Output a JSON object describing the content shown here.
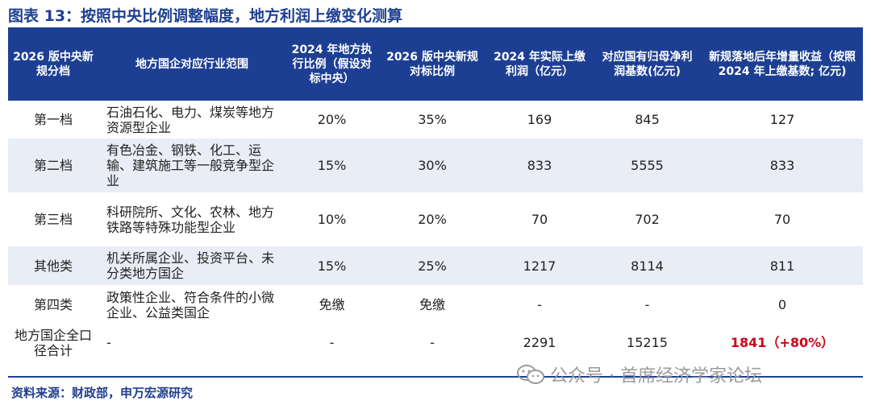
{
  "title": "图表 13：按照中央比例调整幅度，地方利润上缴变化测算",
  "table": {
    "headers": [
      "2026 版中央新规分档",
      "地方国企对应行业范围",
      "2024 年地方执行比例（假设对标中央）",
      "2026 版中央新规对标比例",
      "2024 年实际上缴利润（亿元）",
      "对应国有归母净利润基数(亿元)",
      "新规落地后年增量收益（按照 2024 年上缴基数; 亿元)"
    ],
    "rows": [
      {
        "tier": "第一档",
        "scope": "石油石化、电力、煤炭等地方资源型企业",
        "ratio2024": "20%",
        "ratio2026": "35%",
        "paid2024": "169",
        "base": "845",
        "increment": "127"
      },
      {
        "tier": "第二档",
        "scope": "有色冶金、钢铁、化工、运输、建筑施工等一般竞争型企业",
        "ratio2024": "15%",
        "ratio2026": "30%",
        "paid2024": "833",
        "base": "5555",
        "increment": "833"
      },
      {
        "tier": "第三档",
        "scope": "科研院所、文化、农林、地方铁路等特殊功能型企业",
        "ratio2024": "10%",
        "ratio2026": "20%",
        "paid2024": "70",
        "base": "702",
        "increment": "70"
      },
      {
        "tier": "其他类",
        "scope": "机关所属企业、投资平台、未分类地方国企",
        "ratio2024": "15%",
        "ratio2026": "25%",
        "paid2024": "1217",
        "base": "8114",
        "increment": "811"
      },
      {
        "tier": "第四类",
        "scope": "政策性企业、符合条件的小微企业、公益类国企",
        "ratio2024": "免缴",
        "ratio2026": "免缴",
        "paid2024": "-",
        "base": "-",
        "increment": "0"
      },
      {
        "tier": "地方国企全口径合计",
        "scope": "-",
        "ratio2024": "-",
        "ratio2026": "-",
        "paid2024": "2291",
        "base": "15215",
        "increment": "1841（+80%）"
      }
    ]
  },
  "source": "资料来源：财政部，申万宏源研究",
  "watermark": "公众号 · 首席经济学家论坛",
  "colors": {
    "header_bg": "#1d3f93",
    "shade": "#e9edf6",
    "highlight": "#d0021b"
  }
}
